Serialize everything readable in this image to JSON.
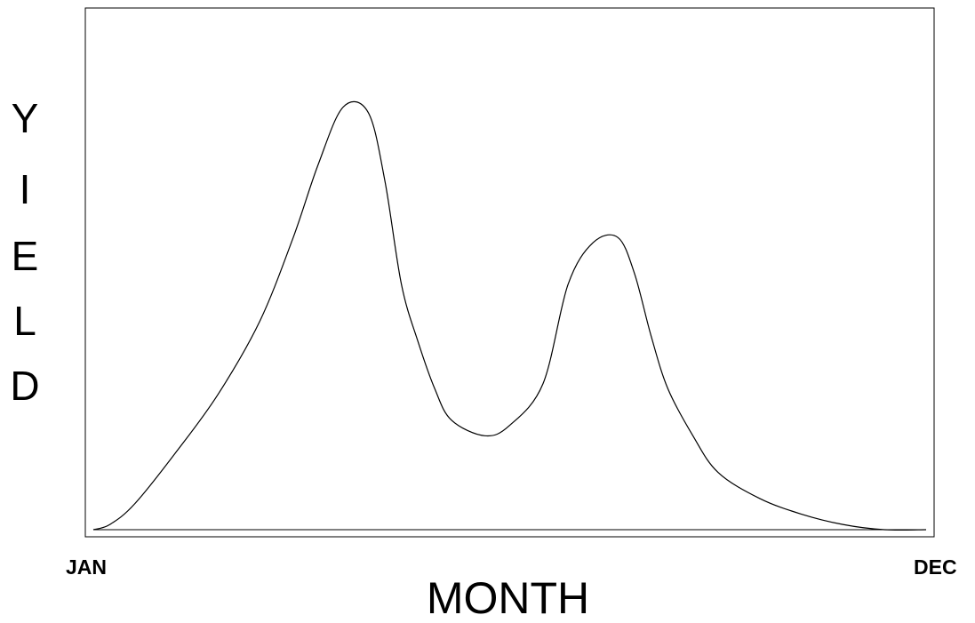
{
  "chart_data": {
    "type": "line",
    "title": "",
    "xlabel": "MONTH",
    "ylabel": "YIELD",
    "x_ticks": [
      "JAN",
      "DEC"
    ],
    "xlim": [
      0,
      1
    ],
    "ylim": [
      0,
      1
    ],
    "y_ticks": [],
    "grid": false,
    "legend": "none",
    "series": [
      {
        "name": "",
        "color": "#000000",
        "x": [
          0.0,
          0.02,
          0.05,
          0.1,
          0.15,
          0.2,
          0.24,
          0.27,
          0.3,
          0.33,
          0.35,
          0.37,
          0.39,
          0.41,
          0.43,
          0.47,
          0.5,
          0.54,
          0.57,
          0.6,
          0.63,
          0.65,
          0.67,
          0.69,
          0.72,
          0.75,
          0.8,
          0.85,
          0.9,
          0.95,
          1.0
        ],
        "y": [
          0.0,
          0.01,
          0.05,
          0.15,
          0.26,
          0.4,
          0.56,
          0.7,
          0.81,
          0.8,
          0.67,
          0.47,
          0.36,
          0.27,
          0.21,
          0.18,
          0.2,
          0.28,
          0.47,
          0.55,
          0.56,
          0.49,
          0.37,
          0.27,
          0.18,
          0.11,
          0.06,
          0.03,
          0.01,
          0.0,
          0.0
        ]
      }
    ]
  }
}
